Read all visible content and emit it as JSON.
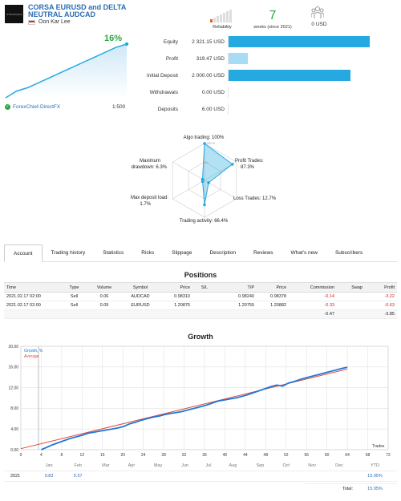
{
  "header": {
    "signal_title_line1": "CORSA EURUSD and DELTA",
    "signal_title_line2": "NEUTRAL AUDCAD",
    "author": "Oon Kar Lee",
    "logo_text": "STRONGHOLD",
    "reliability_label": "Reliability",
    "weeks_value": "7",
    "weeks_label": "weeks (since 2021)",
    "subscribers_value": "0 USD",
    "growth_pct": "16%",
    "broker": "ForexChief-DirectFX",
    "leverage": "1:500",
    "colors": {
      "accent_blue": "#2a6db4",
      "green": "#28a745",
      "bar_blue": "#26a9e0",
      "bar_light": "#a8dcf5"
    }
  },
  "mini_chart": {
    "values": [
      0,
      2,
      3,
      4.5,
      6,
      7.5,
      9,
      10.5,
      12,
      13.5,
      15,
      16
    ]
  },
  "stats": [
    {
      "label": "Equity",
      "value": "2 321.15 USD",
      "fraction": 1.0,
      "style": "dark"
    },
    {
      "label": "Profit",
      "value": "319.47 USD",
      "fraction": 0.138,
      "style": "light"
    },
    {
      "label": "Initial Deposit",
      "value": "2 000.00 USD",
      "fraction": 0.862,
      "style": "dark"
    },
    {
      "label": "Withdrawals",
      "value": "0.00 USD",
      "fraction": 0,
      "style": "dark"
    },
    {
      "label": "Deposits",
      "value": "6.00 USD",
      "fraction": 0,
      "style": "dark"
    }
  ],
  "radar": {
    "algo": "Algo trading: 100%",
    "profit_line1": "Profit Trades:",
    "profit_line2": "87.3%",
    "loss": "Loss Trades: 12.7%",
    "activity": "Trading activity: 66.4%",
    "maxdep_line1": "Max deposit load:",
    "maxdep_line2": "1.7%",
    "drawdown_line1": "Maximum",
    "drawdown_line2": "drawdown: 6.3%",
    "ring_100": "100+%",
    "ring_50": "50%",
    "values": {
      "algo": 1.0,
      "profit": 0.873,
      "loss": 0.127,
      "activity": 0.664,
      "maxdep": 0.017,
      "drawdown": 0.063
    }
  },
  "tabs": [
    "Account",
    "Trading history",
    "Statistics",
    "Risks",
    "Slippage",
    "Description",
    "Reviews",
    "What's new",
    "Subscribers"
  ],
  "positions": {
    "title": "Positions",
    "headers": [
      "Time",
      "Type",
      "Volume",
      "Symbol",
      "Price",
      "S/L",
      "T/P",
      "Price",
      "Commission",
      "Swap",
      "Profit"
    ],
    "rows": [
      [
        "2021.02.17 02:00",
        "Sell",
        "0.06",
        "AUDCAD",
        "0.98310",
        "",
        "0.98240",
        "0.98378",
        "-0.14",
        "",
        "-3.22"
      ],
      [
        "2021.02.17 02:00",
        "Sell",
        "0.09",
        "EURUSD",
        "1.20875",
        "",
        "1.20755",
        "1.20882",
        "-0.33",
        "",
        "-0.63"
      ]
    ],
    "totals": {
      "commission": "-0.47",
      "profit": "-3.85"
    }
  },
  "growth": {
    "title": "Growth",
    "legend_growth": "Growth, %",
    "legend_average": "Average",
    "x_axis_label": "Trades",
    "y_ticks": [
      "0.00",
      "4.00",
      "8.00",
      "12.00",
      "16.00",
      "20.00"
    ],
    "x_ticks": [
      "0",
      "4",
      "8",
      "12",
      "16",
      "20",
      "24",
      "28",
      "32",
      "36",
      "40",
      "44",
      "48",
      "52",
      "56",
      "60",
      "64",
      "68",
      "72"
    ],
    "growth_series": [
      0,
      0.5,
      1,
      1.4,
      1.8,
      2.2,
      2.5,
      2.8,
      3.2,
      3.4,
      3.6,
      3.8,
      4,
      4.2,
      4.5,
      5,
      5.3,
      5.7,
      6,
      6.3,
      6.5,
      6.8,
      7,
      7.2,
      7.4,
      7.7,
      8,
      8.3,
      8.6,
      9,
      9.4,
      9.6,
      9.8,
      10,
      10.3,
      10.6,
      11,
      11.4,
      11.8,
      12.2,
      12.5,
      12.3,
      12.9,
      13.2,
      13.6,
      13.9,
      14.2,
      14.5,
      14.8,
      15.1,
      15.4,
      15.7,
      15.95
    ],
    "average_series": [
      0.2,
      15.6
    ]
  },
  "ytd": {
    "months": [
      "Jan",
      "Feb",
      "Mar",
      "Apr",
      "May",
      "Jun",
      "Jul",
      "Aug",
      "Sep",
      "Oct",
      "Nov",
      "Dec"
    ],
    "ytd_label": "YTD",
    "year": "2021",
    "values": [
      "9.83",
      "5.57",
      "",
      "",
      "",
      "",
      "",
      "",
      "",
      "",
      "",
      ""
    ],
    "ytd_value": "15.95%",
    "total_label": "Total:",
    "total_value": "15.95%"
  }
}
